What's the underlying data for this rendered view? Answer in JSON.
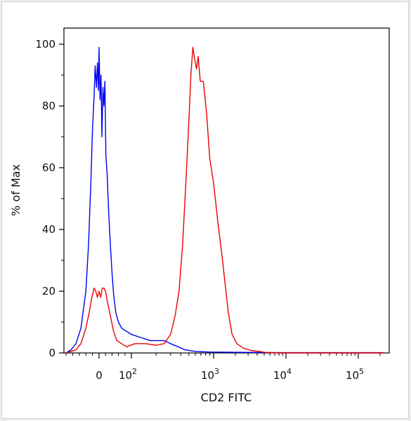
{
  "chart_data": {
    "type": "line",
    "title": "",
    "xlabel": "CD2 FITC",
    "ylabel": "% of Max",
    "x_scale": "biexponential",
    "xlim": [
      -100,
      220000
    ],
    "ylim": [
      0,
      105
    ],
    "y_ticks": [
      "0",
      "20",
      "40",
      "60",
      "80",
      "100"
    ],
    "y_tick_values": [
      0,
      20,
      40,
      60,
      80,
      100
    ],
    "x_ticks": [
      {
        "value": 0,
        "base": "0",
        "exp": ""
      },
      {
        "value": 100,
        "base": "10",
        "exp": "2"
      },
      {
        "value": 1000,
        "base": "10",
        "exp": "3"
      },
      {
        "value": 10000,
        "base": "10",
        "exp": "4"
      },
      {
        "value": 100000,
        "base": "10",
        "exp": "5"
      }
    ],
    "grid": false,
    "legend": "none",
    "series": [
      {
        "color": "#0000ee",
        "points": [
          [
            -100,
            0
          ],
          [
            -85,
            1
          ],
          [
            -70,
            3
          ],
          [
            -55,
            8
          ],
          [
            -40,
            20
          ],
          [
            -32,
            35
          ],
          [
            -25,
            55
          ],
          [
            -20,
            72
          ],
          [
            -15,
            83
          ],
          [
            -12,
            93
          ],
          [
            -8,
            86
          ],
          [
            -5,
            94
          ],
          [
            -2,
            85
          ],
          [
            0,
            99
          ],
          [
            3,
            82
          ],
          [
            6,
            90
          ],
          [
            9,
            70
          ],
          [
            12,
            86
          ],
          [
            15,
            80
          ],
          [
            18,
            88
          ],
          [
            21,
            64
          ],
          [
            25,
            58
          ],
          [
            30,
            45
          ],
          [
            35,
            35
          ],
          [
            40,
            26
          ],
          [
            45,
            19
          ],
          [
            52,
            13
          ],
          [
            60,
            10
          ],
          [
            70,
            8
          ],
          [
            85,
            7
          ],
          [
            100,
            6
          ],
          [
            130,
            5
          ],
          [
            170,
            4
          ],
          [
            210,
            4
          ],
          [
            250,
            4
          ],
          [
            300,
            3
          ],
          [
            370,
            2
          ],
          [
            450,
            1
          ],
          [
            600,
            0.5
          ],
          [
            900,
            0.3
          ],
          [
            2000,
            0.2
          ],
          [
            10000,
            0.1
          ],
          [
            220000,
            0.1
          ]
        ]
      },
      {
        "color": "#ee0000",
        "points": [
          [
            -100,
            0
          ],
          [
            -85,
            0.5
          ],
          [
            -70,
            1
          ],
          [
            -55,
            3
          ],
          [
            -40,
            8
          ],
          [
            -30,
            13
          ],
          [
            -22,
            18
          ],
          [
            -15,
            21
          ],
          [
            -10,
            20
          ],
          [
            -5,
            18
          ],
          [
            0,
            20
          ],
          [
            5,
            18
          ],
          [
            10,
            21
          ],
          [
            15,
            21
          ],
          [
            20,
            20
          ],
          [
            27,
            16
          ],
          [
            35,
            12
          ],
          [
            45,
            7
          ],
          [
            55,
            4
          ],
          [
            70,
            3
          ],
          [
            85,
            2
          ],
          [
            110,
            3
          ],
          [
            150,
            3
          ],
          [
            200,
            2.5
          ],
          [
            250,
            3
          ],
          [
            300,
            6
          ],
          [
            340,
            12
          ],
          [
            380,
            20
          ],
          [
            420,
            35
          ],
          [
            460,
            55
          ],
          [
            500,
            75
          ],
          [
            530,
            90
          ],
          [
            560,
            99
          ],
          [
            590,
            95
          ],
          [
            620,
            92
          ],
          [
            650,
            96
          ],
          [
            690,
            88
          ],
          [
            750,
            88
          ],
          [
            820,
            78
          ],
          [
            900,
            63
          ],
          [
            1000,
            55
          ],
          [
            1150,
            42
          ],
          [
            1300,
            32
          ],
          [
            1450,
            22
          ],
          [
            1600,
            13
          ],
          [
            1800,
            6
          ],
          [
            2100,
            3
          ],
          [
            2600,
            1.5
          ],
          [
            3300,
            0.8
          ],
          [
            4500,
            0.4
          ],
          [
            5000,
            0.2
          ],
          [
            8000,
            0
          ],
          [
            220000,
            0
          ]
        ]
      }
    ]
  }
}
